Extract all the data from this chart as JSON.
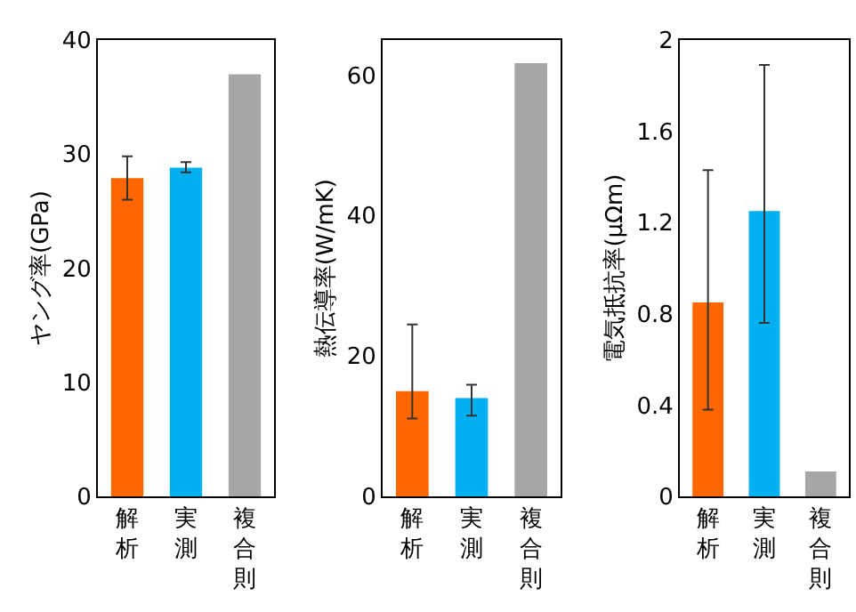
{
  "chart_data": [
    {
      "type": "bar",
      "ylabel": "ヤング率(GPa)",
      "categories": [
        "解析",
        "実測",
        "複合則"
      ],
      "values": [
        27.9,
        28.8,
        37.0
      ],
      "colors": [
        "#ff6600",
        "#00b0f0",
        "#a6a6a6"
      ],
      "errors": [
        [
          26.0,
          29.8
        ],
        [
          28.4,
          29.3
        ],
        null
      ],
      "ylim": [
        0,
        40
      ],
      "yticks": [
        0,
        10,
        20,
        30,
        40
      ]
    },
    {
      "type": "bar",
      "ylabel": "熱伝導率(W/mK)",
      "categories": [
        "解析",
        "実測",
        "複合則"
      ],
      "values": [
        15.0,
        14.0,
        61.7
      ],
      "colors": [
        "#ff6600",
        "#00b0f0",
        "#a6a6a6"
      ],
      "errors": [
        [
          11.1,
          24.5
        ],
        [
          11.5,
          15.9
        ],
        null
      ],
      "ylim": [
        0,
        65
      ],
      "yticks": [
        0,
        20,
        40,
        60
      ]
    },
    {
      "type": "bar",
      "ylabel": "電気抵抗率(μΩm)",
      "categories": [
        "解析",
        "実測",
        "複合則"
      ],
      "values": [
        0.85,
        1.25,
        0.11
      ],
      "colors": [
        "#ff6600",
        "#00b0f0",
        "#a6a6a6"
      ],
      "errors": [
        [
          0.38,
          1.43
        ],
        [
          0.76,
          1.89
        ],
        null
      ],
      "ylim": [
        0,
        2
      ],
      "yticks": [
        0,
        0.4,
        0.8,
        1.2,
        1.6,
        2
      ]
    }
  ]
}
